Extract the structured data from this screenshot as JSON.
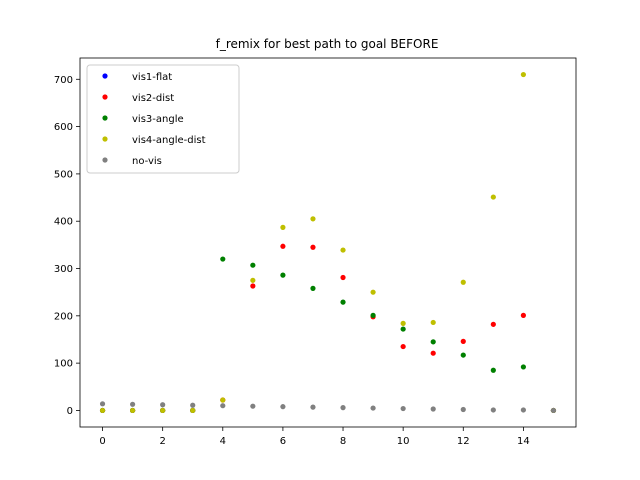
{
  "chart_data": {
    "type": "scatter",
    "title": "f_remix for best path to goal BEFORE",
    "xlabel": "",
    "ylabel": "",
    "xlim": [
      -0.75,
      15.75
    ],
    "ylim": [
      -35,
      745
    ],
    "xticks": [
      0,
      2,
      4,
      6,
      8,
      10,
      12,
      14
    ],
    "yticks": [
      0,
      100,
      200,
      300,
      400,
      500,
      600,
      700
    ],
    "grid": false,
    "legend_position": "top-left",
    "series": [
      {
        "name": "vis1-flat",
        "color": "#0000ff",
        "points": [
          [
            0,
            0
          ],
          [
            1,
            0
          ],
          [
            2,
            0
          ],
          [
            3,
            0
          ],
          [
            15,
            0
          ]
        ]
      },
      {
        "name": "vis2-dist",
        "color": "#ff0000",
        "points": [
          [
            0,
            0
          ],
          [
            1,
            0
          ],
          [
            2,
            0
          ],
          [
            3,
            0
          ],
          [
            4,
            22
          ],
          [
            5,
            263
          ],
          [
            6,
            347
          ],
          [
            7,
            345
          ],
          [
            8,
            281
          ],
          [
            9,
            198
          ],
          [
            10,
            135
          ],
          [
            11,
            121
          ],
          [
            12,
            146
          ],
          [
            13,
            182
          ],
          [
            14,
            201
          ],
          [
            15,
            0
          ]
        ]
      },
      {
        "name": "vis3-angle",
        "color": "#008000",
        "points": [
          [
            0,
            0
          ],
          [
            1,
            0
          ],
          [
            2,
            0
          ],
          [
            3,
            0
          ],
          [
            4,
            320
          ],
          [
            5,
            307
          ],
          [
            6,
            286
          ],
          [
            7,
            258
          ],
          [
            8,
            229
          ],
          [
            9,
            201
          ],
          [
            10,
            172
          ],
          [
            11,
            145
          ],
          [
            12,
            117
          ],
          [
            13,
            85
          ],
          [
            14,
            92
          ],
          [
            15,
            0
          ]
        ]
      },
      {
        "name": "vis4-angle-dist",
        "color": "#bfbf00",
        "points": [
          [
            0,
            0
          ],
          [
            1,
            0
          ],
          [
            2,
            0
          ],
          [
            3,
            0
          ],
          [
            4,
            22
          ],
          [
            5,
            275
          ],
          [
            6,
            387
          ],
          [
            7,
            405
          ],
          [
            8,
            339
          ],
          [
            9,
            250
          ],
          [
            10,
            184
          ],
          [
            11,
            186
          ],
          [
            12,
            271
          ],
          [
            13,
            451
          ],
          [
            14,
            710
          ],
          [
            15,
            0
          ]
        ]
      },
      {
        "name": "no-vis",
        "color": "#808080",
        "points": [
          [
            0,
            14
          ],
          [
            1,
            13
          ],
          [
            2,
            12
          ],
          [
            3,
            11
          ],
          [
            4,
            10
          ],
          [
            5,
            9
          ],
          [
            6,
            8
          ],
          [
            7,
            7
          ],
          [
            8,
            6
          ],
          [
            9,
            5
          ],
          [
            10,
            4
          ],
          [
            11,
            3
          ],
          [
            12,
            2
          ],
          [
            13,
            1
          ],
          [
            14,
            1
          ],
          [
            15,
            0
          ]
        ]
      }
    ]
  }
}
